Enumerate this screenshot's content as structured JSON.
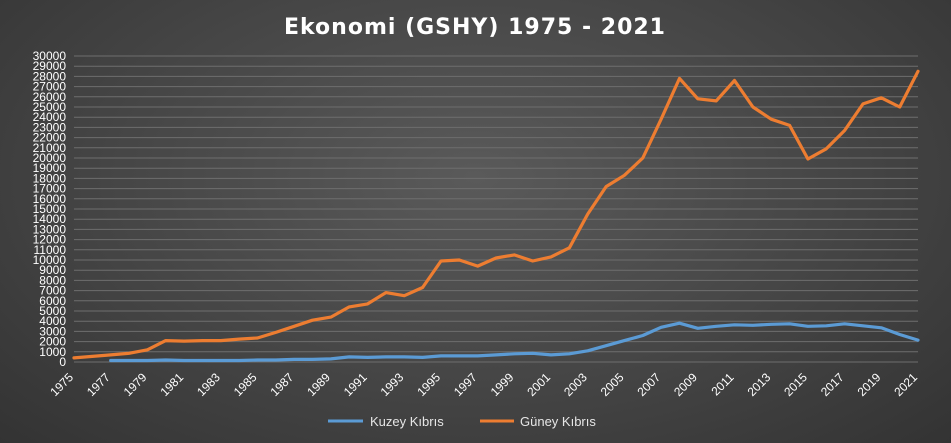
{
  "chart_data": {
    "type": "line",
    "title": "Ekonomi (GSHY) 1975 - 2021",
    "xlabel": "",
    "ylabel": "",
    "ylim": [
      0,
      30000
    ],
    "yticks": [
      0,
      1000,
      2000,
      3000,
      4000,
      5000,
      6000,
      7000,
      8000,
      9000,
      10000,
      11000,
      12000,
      13000,
      14000,
      15000,
      16000,
      17000,
      18000,
      19000,
      20000,
      21000,
      22000,
      23000,
      24000,
      25000,
      26000,
      27000,
      28000,
      29000,
      30000
    ],
    "x": [
      1975,
      1976,
      1977,
      1978,
      1979,
      1980,
      1981,
      1982,
      1983,
      1984,
      1985,
      1986,
      1987,
      1988,
      1989,
      1990,
      1991,
      1992,
      1993,
      1994,
      1995,
      1996,
      1997,
      1998,
      1999,
      2000,
      2001,
      2002,
      2003,
      2004,
      2005,
      2006,
      2007,
      2008,
      2009,
      2010,
      2011,
      2012,
      2013,
      2014,
      2015,
      2016,
      2017,
      2018,
      2019,
      2020,
      2021
    ],
    "xticks": [
      "1975",
      "1977",
      "1979",
      "1981",
      "1983",
      "1985",
      "1987",
      "1989",
      "1991",
      "1993",
      "1995",
      "1997",
      "1999",
      "2001",
      "2003",
      "2005",
      "2007",
      "2009",
      "2011",
      "2013",
      "2015",
      "2017",
      "2019",
      "2021"
    ],
    "grid": true,
    "legend_position": "bottom",
    "series": [
      {
        "name": "Kuzey Kıbrıs",
        "color": "#5b9bd5",
        "values": [
          null,
          null,
          150,
          150,
          150,
          200,
          150,
          150,
          150,
          150,
          200,
          200,
          250,
          250,
          300,
          500,
          450,
          500,
          500,
          450,
          600,
          600,
          600,
          700,
          800,
          850,
          700,
          800,
          1100,
          1600,
          2100,
          2600,
          3400,
          3800,
          3300,
          3500,
          3650,
          3600,
          3700,
          3750,
          3500,
          3550,
          3750,
          3550,
          3350,
          2700,
          2150
        ]
      },
      {
        "name": "Güney Kıbrıs",
        "color": "#ed7d31",
        "values": [
          400,
          550,
          700,
          850,
          1200,
          2100,
          2050,
          2100,
          2100,
          2250,
          2350,
          2900,
          3500,
          4100,
          4400,
          5400,
          5700,
          6800,
          6500,
          7300,
          9900,
          10000,
          9400,
          10200,
          10500,
          9900,
          10300,
          11200,
          14500,
          17200,
          18300,
          20000,
          23800,
          27800,
          25800,
          25600,
          27600,
          25000,
          23800,
          23200,
          19900,
          20900,
          22700,
          25300,
          25900,
          25000,
          28500
        ]
      }
    ]
  }
}
